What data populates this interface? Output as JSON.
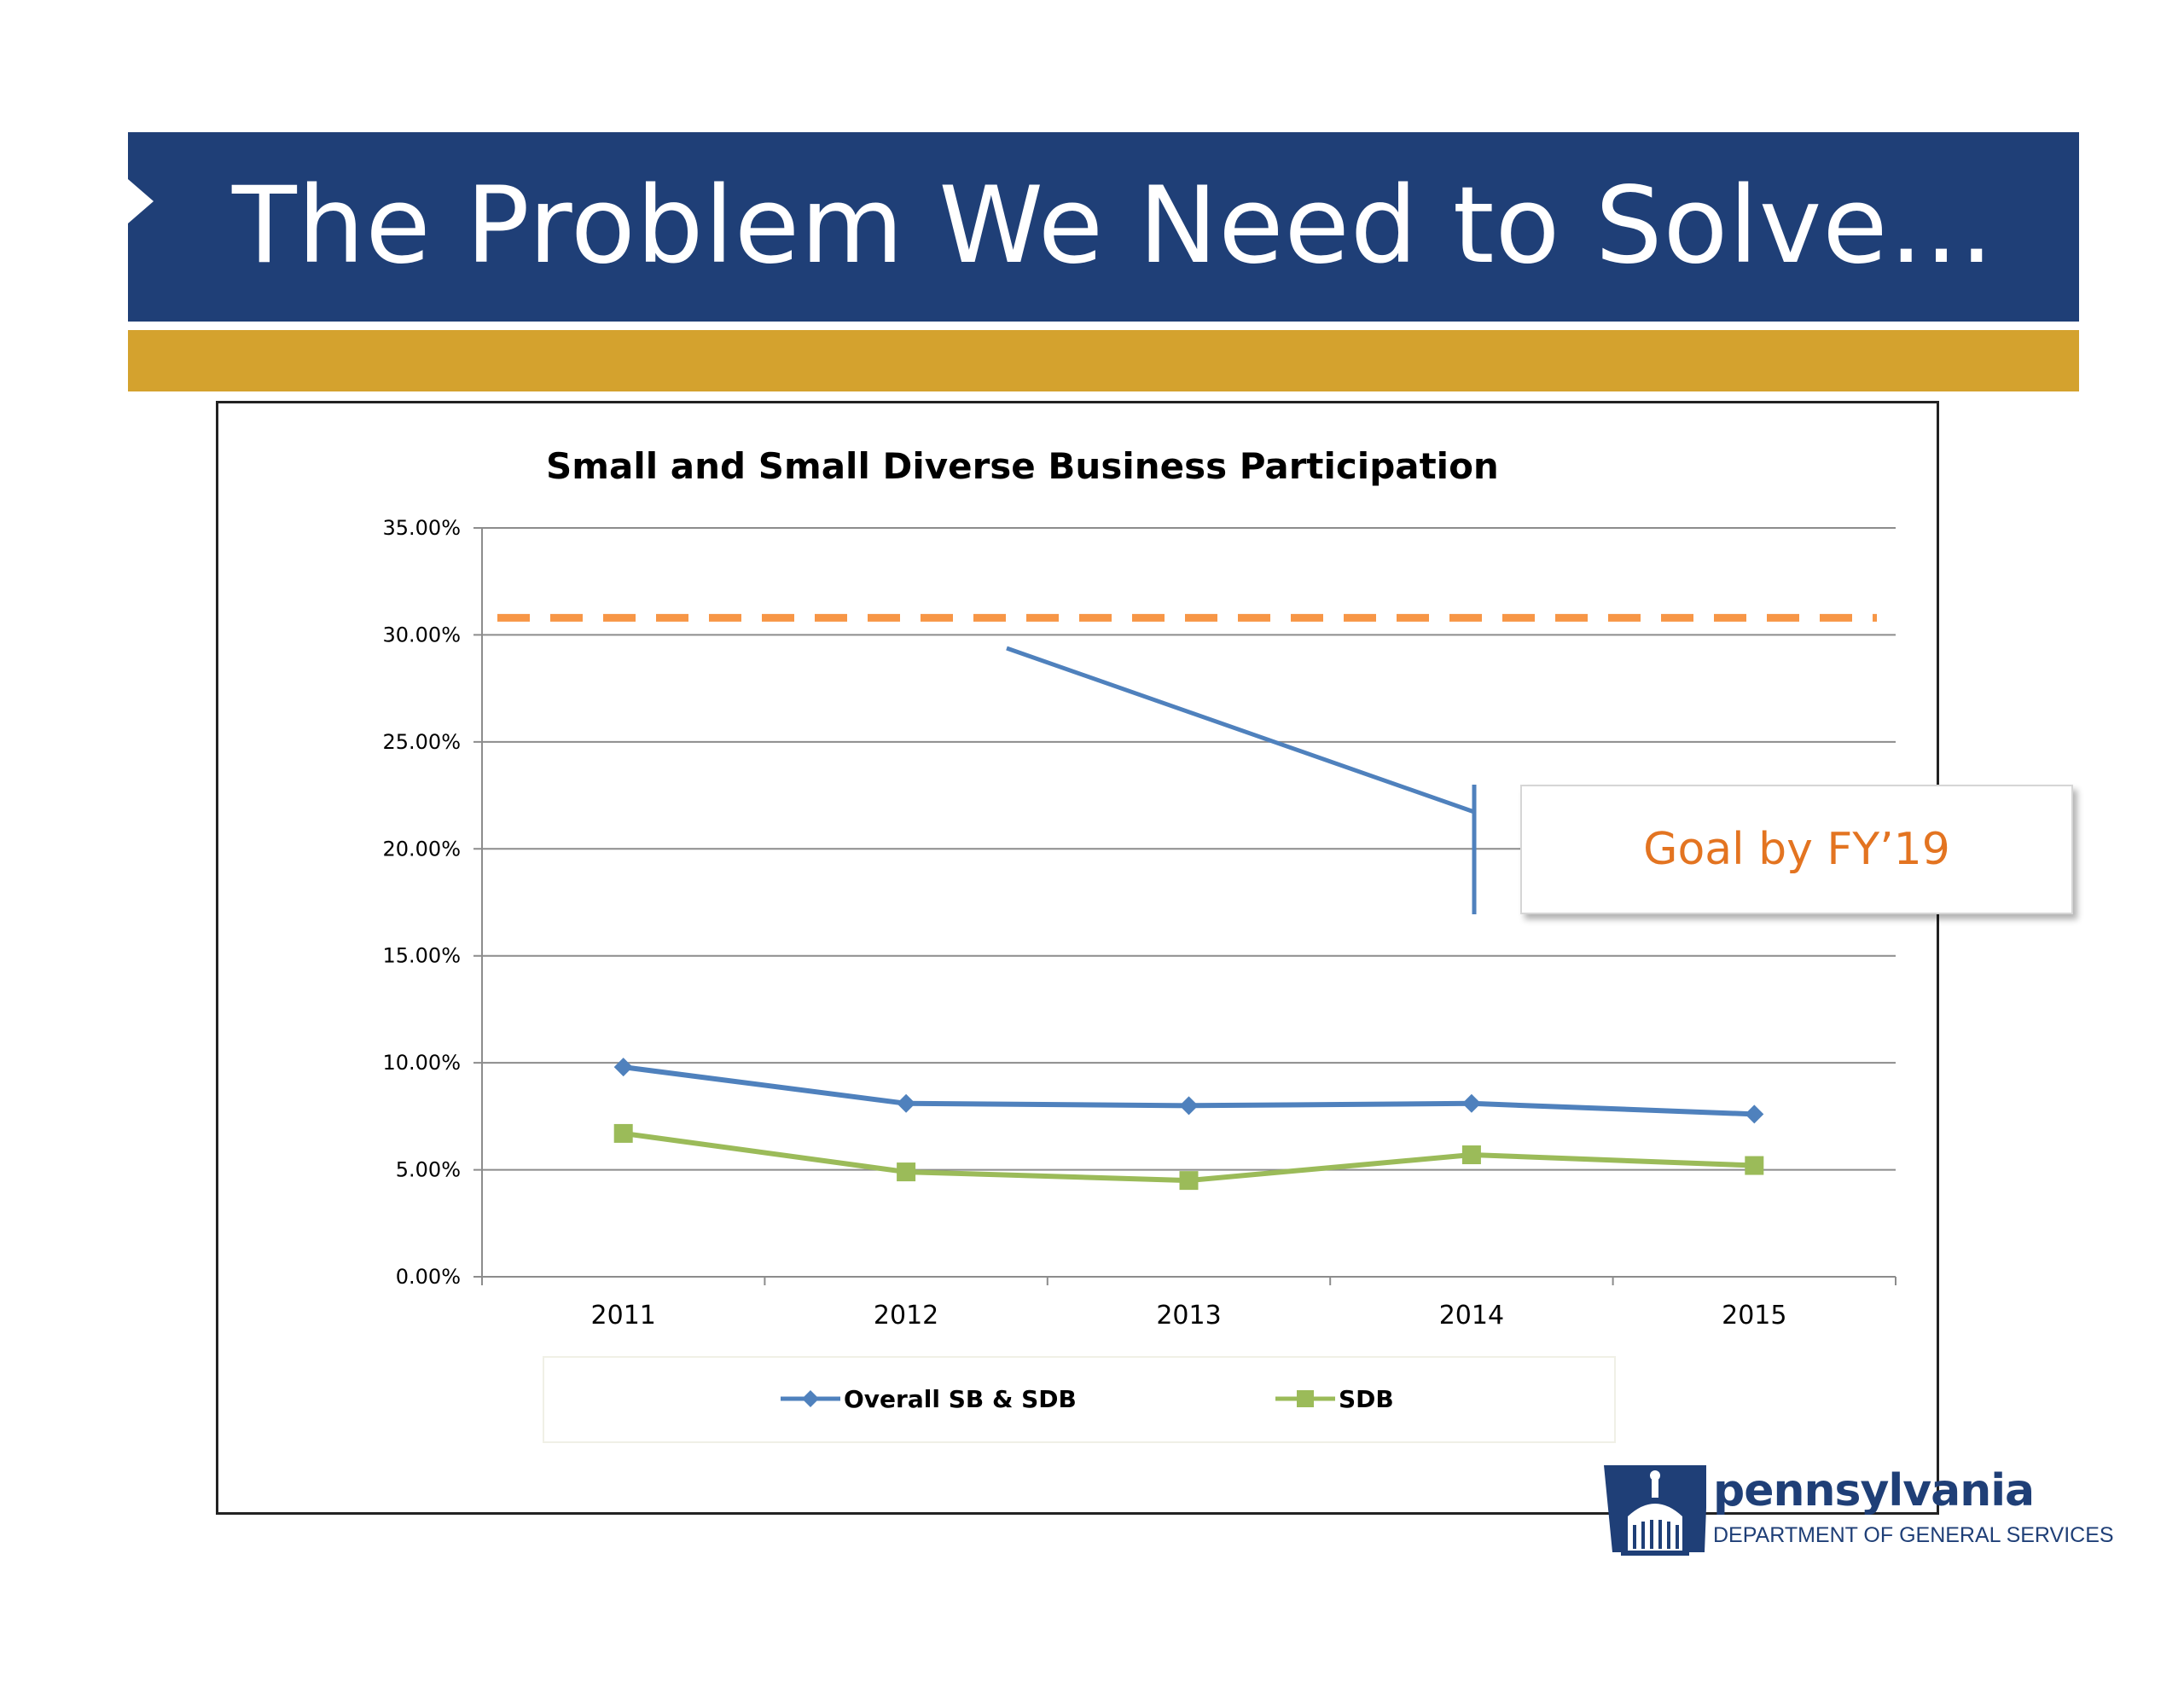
{
  "slide": {
    "title": "The Problem We Need to Solve…"
  },
  "callout": {
    "text": "Goal by FY’19"
  },
  "logo": {
    "wordmark": "pennsylvania",
    "department": "DEPARTMENT OF GENERAL SERVICES"
  },
  "colors": {
    "header": "#1f3f77",
    "gold": "#d4a22e",
    "overall_series": "#4f81bd",
    "sdb_series": "#9bbb59",
    "goal_line": "#f79646",
    "callout_text": "#e37421"
  },
  "chart_data": {
    "type": "line",
    "title": "Small and Small Diverse Business Participation",
    "categories": [
      "2011",
      "2012",
      "2013",
      "2014",
      "2015"
    ],
    "ylim": [
      0,
      35
    ],
    "yticks": [
      0,
      5,
      10,
      15,
      20,
      25,
      30,
      35
    ],
    "ytick_labels": [
      "0.00%",
      "5.00%",
      "10.00%",
      "15.00%",
      "20.00%",
      "25.00%",
      "30.00%",
      "35.00%"
    ],
    "grid": true,
    "legend_position": "bottom",
    "series": [
      {
        "name": "Overall SB & SDB",
        "marker": "diamond",
        "values": [
          9.8,
          8.1,
          8.0,
          8.1,
          7.6
        ]
      },
      {
        "name": "SDB",
        "marker": "square",
        "values": [
          6.7,
          4.9,
          4.5,
          5.7,
          5.2
        ]
      }
    ],
    "goal": {
      "value": 30.8,
      "style": "dashed"
    }
  }
}
